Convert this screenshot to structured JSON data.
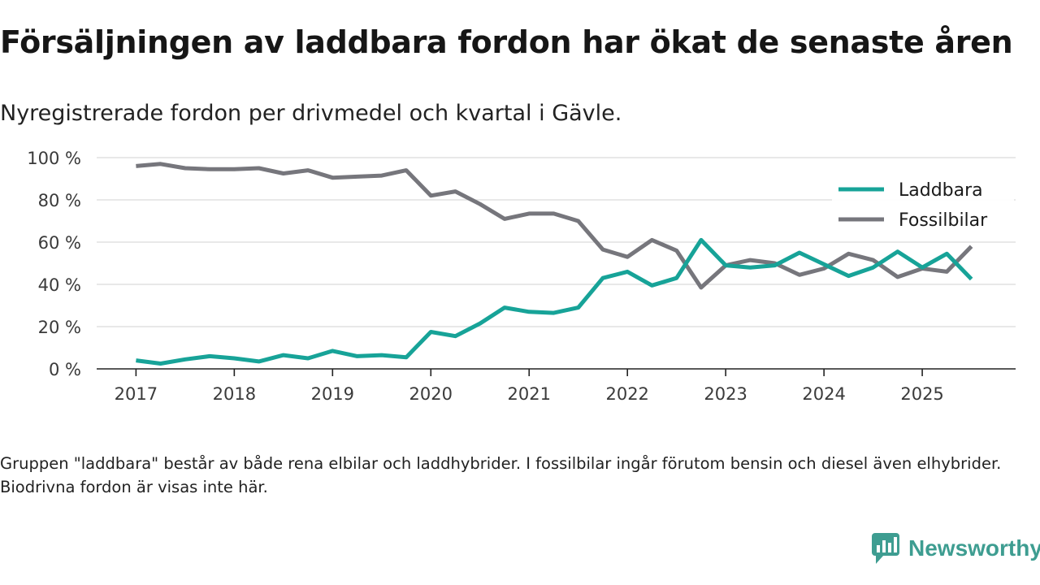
{
  "title": "Försäljningen av laddbara fordon har ökat de senaste åren",
  "subtitle": "Nyregistrerade fordon per drivmedel och kvartal i Gävle.",
  "footnote": "Gruppen \"laddbara\" består av både rena elbilar och laddhybrider. I fossilbilar ingår förutom bensin och diesel även elhybrider. Biodrivna fordon är visas inte här.",
  "brand": {
    "name": "Newsworthy",
    "icon": "newsworthy-logo-icon",
    "color": "#3e9d91"
  },
  "chart_data": {
    "type": "line",
    "title": "Försäljningen av laddbara fordon har ökat de senaste åren",
    "subtitle": "Nyregistrerade fordon per drivmedel och kvartal i Gävle.",
    "xlabel": "",
    "ylabel": "",
    "x": [
      2017.0,
      2017.25,
      2017.5,
      2017.75,
      2018.0,
      2018.25,
      2018.5,
      2018.75,
      2019.0,
      2019.25,
      2019.5,
      2019.75,
      2020.0,
      2020.25,
      2020.5,
      2020.75,
      2021.0,
      2021.25,
      2021.5,
      2021.75,
      2022.0,
      2022.25,
      2022.5,
      2022.75,
      2023.0,
      2023.25,
      2023.5,
      2023.75,
      2024.0,
      2024.25,
      2024.5,
      2024.75,
      2025.0,
      2025.25,
      2025.5
    ],
    "xlim": [
      2016.6,
      2025.95
    ],
    "ylim": [
      0,
      100
    ],
    "x_ticks": [
      2017,
      2018,
      2019,
      2020,
      2021,
      2022,
      2023,
      2024,
      2025
    ],
    "x_tick_labels": [
      "2017",
      "2018",
      "2019",
      "2020",
      "2021",
      "2022",
      "2023",
      "2024",
      "2025"
    ],
    "y_ticks": [
      0,
      20,
      40,
      60,
      80,
      100
    ],
    "y_tick_labels": [
      "0 %",
      "20 %",
      "40 %",
      "60 %",
      "80 %",
      "100 %"
    ],
    "grid": true,
    "legend_position": "top-right",
    "series": [
      {
        "name": "Laddbara",
        "color": "#17a398",
        "values": [
          4,
          2.5,
          4.5,
          6,
          5,
          3.5,
          6.5,
          5,
          8.5,
          6,
          6.5,
          5.5,
          17.5,
          15.5,
          21.5,
          29,
          27,
          26.5,
          29,
          43,
          46,
          39.5,
          43,
          61,
          49,
          48,
          49,
          55,
          49.5,
          44,
          48,
          55.5,
          48,
          54.5,
          42.5
        ]
      },
      {
        "name": "Fossilbilar",
        "color": "#76767c",
        "values": [
          96,
          97,
          95,
          94.5,
          94.5,
          95,
          92.5,
          94,
          90.5,
          91,
          91.5,
          94,
          82,
          84,
          78,
          71,
          73.5,
          73.5,
          70,
          56.5,
          53,
          61,
          56,
          38.5,
          49,
          51.5,
          50,
          44.5,
          47.5,
          54.5,
          51.5,
          43.5,
          47.5,
          46,
          58
        ]
      }
    ]
  }
}
